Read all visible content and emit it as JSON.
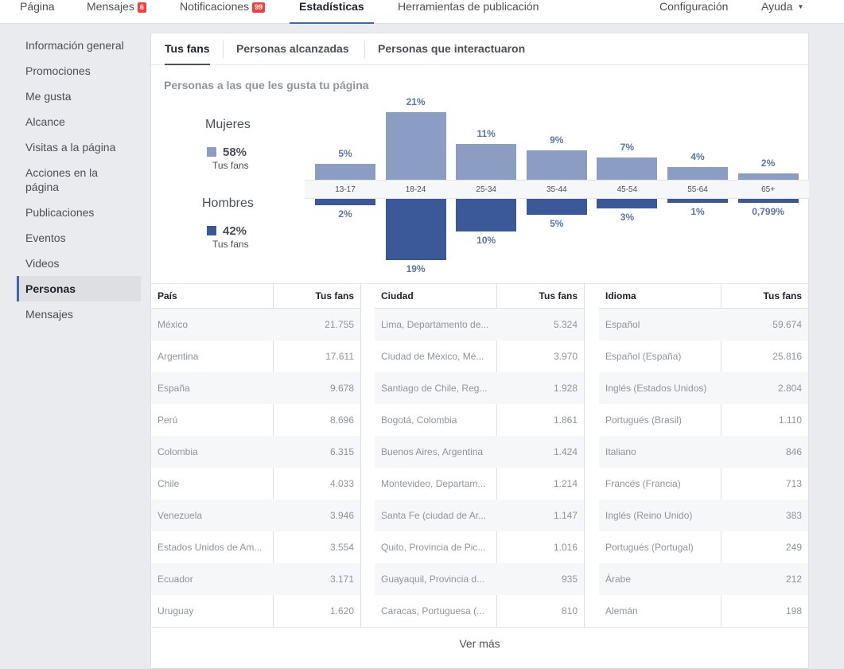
{
  "nav": {
    "pagina": "Página",
    "mensajes": "Mensajes",
    "mensajes_badge": "6",
    "notificaciones": "Notificaciones",
    "notificaciones_badge": "99",
    "estadisticas": "Estadísticas",
    "herramientas": "Herramientas de publicación",
    "configuracion": "Configuración",
    "ayuda": "Ayuda"
  },
  "sidebar": {
    "items": [
      {
        "label": "Información general"
      },
      {
        "label": "Promociones"
      },
      {
        "label": "Me gusta"
      },
      {
        "label": "Alcance"
      },
      {
        "label": "Visitas a la página"
      },
      {
        "label": "Acciones en la página"
      },
      {
        "label": "Publicaciones"
      },
      {
        "label": "Eventos"
      },
      {
        "label": "Videos"
      },
      {
        "label": "Personas",
        "active": true
      },
      {
        "label": "Mensajes"
      }
    ]
  },
  "tabs": [
    "Tus fans",
    "Personas alcanzadas",
    "Personas que interactuaron"
  ],
  "section_title": "Personas a las que les gusta tu página",
  "gender": {
    "women_label": "Mujeres",
    "women_pct": "58%",
    "women_sub": "Tus fans",
    "men_label": "Hombres",
    "men_pct": "42%",
    "men_sub": "Tus fans",
    "women_color": "#8b9dc3",
    "men_color": "#3b5998"
  },
  "chart_data": {
    "type": "bar",
    "categories": [
      "13-17",
      "18-24",
      "25-34",
      "35-44",
      "45-54",
      "55-64",
      "65+"
    ],
    "series": [
      {
        "name": "Mujeres",
        "values": [
          5,
          21,
          11,
          9,
          7,
          4,
          2
        ],
        "labels": [
          "5%",
          "21%",
          "11%",
          "9%",
          "7%",
          "4%",
          "2%"
        ]
      },
      {
        "name": "Hombres",
        "values": [
          2,
          19,
          10,
          5,
          3,
          1,
          0.799
        ],
        "labels": [
          "2%",
          "19%",
          "10%",
          "5%",
          "3%",
          "1%",
          "0,799%"
        ]
      }
    ]
  },
  "tables": {
    "country": {
      "header_name": "País",
      "header_value": "Tus fans",
      "rows": [
        {
          "name": "México",
          "value": "21.755"
        },
        {
          "name": "Argentina",
          "value": "17.611"
        },
        {
          "name": "España",
          "value": "9.678"
        },
        {
          "name": "Perú",
          "value": "8.696"
        },
        {
          "name": "Colombia",
          "value": "6.315"
        },
        {
          "name": "Chile",
          "value": "4.033"
        },
        {
          "name": "Venezuela",
          "value": "3.946"
        },
        {
          "name": "Estados Unidos de Am...",
          "value": "3.554"
        },
        {
          "name": "Ecuador",
          "value": "3.171"
        },
        {
          "name": "Uruguay",
          "value": "1.620"
        }
      ]
    },
    "city": {
      "header_name": "Ciudad",
      "header_value": "Tus fans",
      "rows": [
        {
          "name": "Lima, Departamento de...",
          "value": "5.324"
        },
        {
          "name": "Ciudad de México, Mé...",
          "value": "3.970"
        },
        {
          "name": "Santiago de Chile, Reg...",
          "value": "1.928"
        },
        {
          "name": "Bogotá, Colombia",
          "value": "1.861"
        },
        {
          "name": "Buenos Aires, Argentina",
          "value": "1.424"
        },
        {
          "name": "Montevideo, Departam...",
          "value": "1.214"
        },
        {
          "name": "Santa Fe (ciudad de Ar...",
          "value": "1.147"
        },
        {
          "name": "Quito, Provincia de Pic...",
          "value": "1.016"
        },
        {
          "name": "Guayaquil, Provincia d...",
          "value": "935"
        },
        {
          "name": "Caracas, Portuguesa (...",
          "value": "810"
        }
      ]
    },
    "language": {
      "header_name": "Idioma",
      "header_value": "Tus fans",
      "rows": [
        {
          "name": "Español",
          "value": "59.674"
        },
        {
          "name": "Español (España)",
          "value": "25.816"
        },
        {
          "name": "Inglés (Estados Unidos)",
          "value": "2.804"
        },
        {
          "name": "Portugués (Brasil)",
          "value": "1.110"
        },
        {
          "name": "Italiano",
          "value": "846"
        },
        {
          "name": "Francés (Francia)",
          "value": "713"
        },
        {
          "name": "Inglés (Reino Unido)",
          "value": "383"
        },
        {
          "name": "Portugués (Portugal)",
          "value": "249"
        },
        {
          "name": "Árabe",
          "value": "212"
        },
        {
          "name": "Alemán",
          "value": "198"
        }
      ]
    }
  },
  "see_more": "Ver más"
}
